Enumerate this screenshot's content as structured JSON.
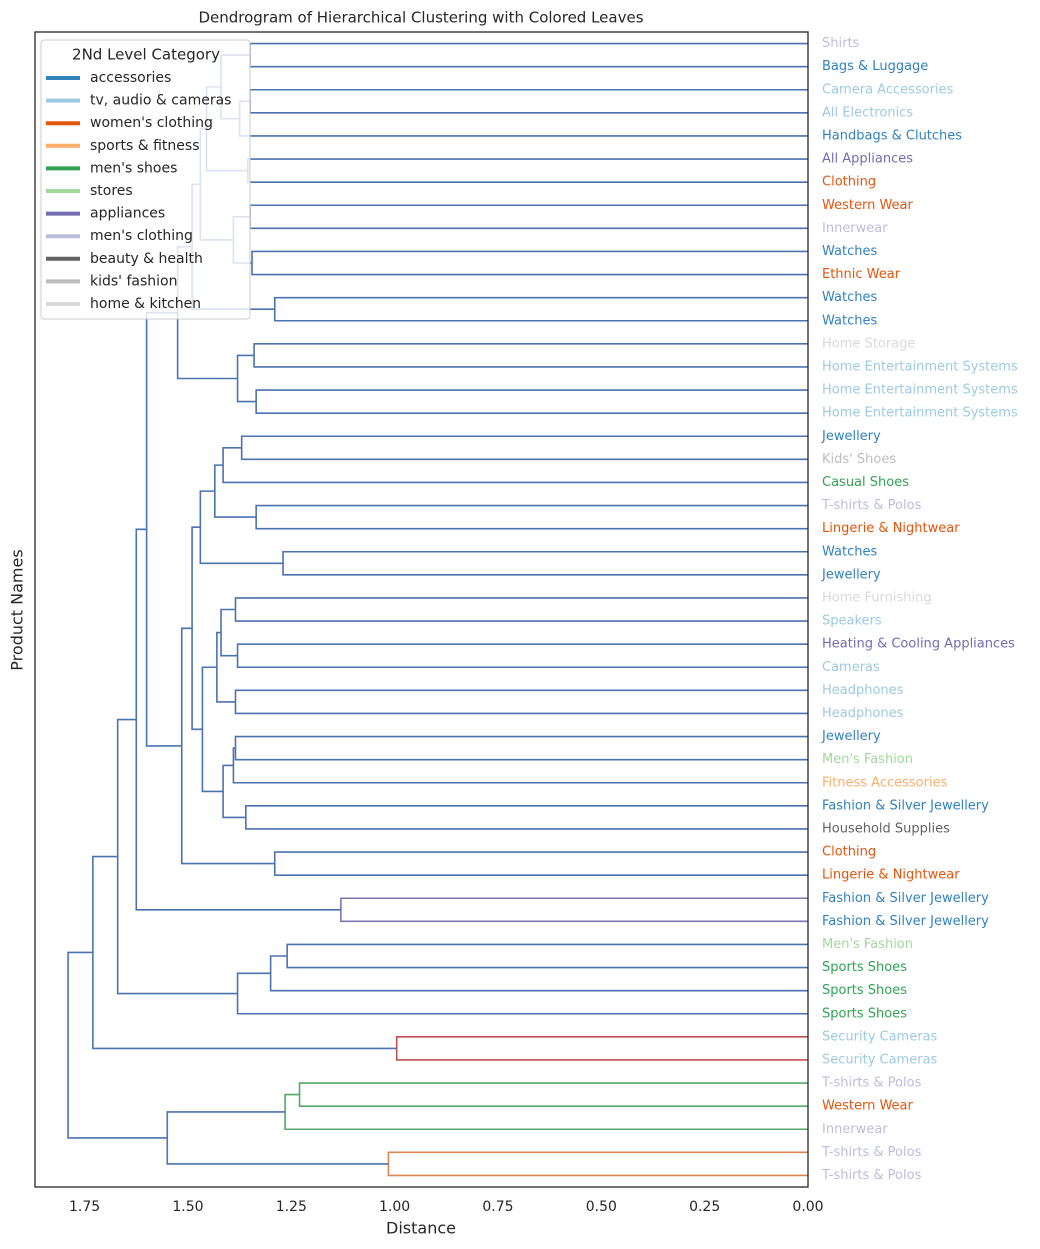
{
  "chart_data": {
    "type": "dendrogram",
    "title": "Dendrogram of Hierarchical Clustering with Colored Leaves",
    "xlabel": "Distance",
    "ylabel": "Product Names",
    "xlim": [
      1.87,
      0
    ],
    "xticks": [
      {
        "value": 1.75,
        "label": "1.75"
      },
      {
        "value": 1.5,
        "label": "1.50"
      },
      {
        "value": 1.25,
        "label": "1.25"
      },
      {
        "value": 1.0,
        "label": "1.00"
      },
      {
        "value": 0.75,
        "label": "0.75"
      },
      {
        "value": 0.5,
        "label": "0.50"
      },
      {
        "value": 0.25,
        "label": "0.25"
      },
      {
        "value": 0,
        "label": "0.00"
      }
    ],
    "legend": {
      "title": "2Nd Level Category",
      "position": "upper left",
      "categories": [
        {
          "name": "accessories",
          "color": "#3182bd"
        },
        {
          "name": "tv, audio & cameras",
          "color": "#9ecae1"
        },
        {
          "name": "women's clothing",
          "color": "#e6550d"
        },
        {
          "name": "sports & fitness",
          "color": "#fdae6b"
        },
        {
          "name": "men's shoes",
          "color": "#31a354"
        },
        {
          "name": "stores",
          "color": "#a1d99b"
        },
        {
          "name": "appliances",
          "color": "#756bb1"
        },
        {
          "name": "men's clothing",
          "color": "#bcbddc"
        },
        {
          "name": "beauty & health",
          "color": "#636363"
        },
        {
          "name": "kids' fashion",
          "color": "#bdbdbd"
        },
        {
          "name": "home & kitchen",
          "color": "#d9d9d9"
        }
      ]
    },
    "leaves": [
      {
        "name": "Shirts",
        "category": "men's clothing"
      },
      {
        "name": "Bags & Luggage",
        "category": "accessories"
      },
      {
        "name": "Camera Accessories",
        "category": "tv, audio & cameras"
      },
      {
        "name": "All Electronics",
        "category": "tv, audio & cameras"
      },
      {
        "name": "Handbags & Clutches",
        "category": "accessories"
      },
      {
        "name": "All Appliances",
        "category": "appliances"
      },
      {
        "name": "Clothing",
        "category": "women's clothing"
      },
      {
        "name": "Western Wear",
        "category": "women's clothing"
      },
      {
        "name": "Innerwear",
        "category": "men's clothing"
      },
      {
        "name": "Watches",
        "category": "accessories"
      },
      {
        "name": "Ethnic Wear",
        "category": "women's clothing"
      },
      {
        "name": "Watches",
        "category": "accessories"
      },
      {
        "name": "Watches",
        "category": "accessories"
      },
      {
        "name": "Home Storage",
        "category": "home & kitchen"
      },
      {
        "name": "Home Entertainment Systems",
        "category": "tv, audio & cameras"
      },
      {
        "name": "Home Entertainment Systems",
        "category": "tv, audio & cameras"
      },
      {
        "name": "Home Entertainment Systems",
        "category": "tv, audio & cameras"
      },
      {
        "name": "Jewellery",
        "category": "accessories"
      },
      {
        "name": "Kids' Shoes",
        "category": "kids' fashion"
      },
      {
        "name": "Casual Shoes",
        "category": "men's shoes"
      },
      {
        "name": "T-shirts & Polos",
        "category": "men's clothing"
      },
      {
        "name": "Lingerie & Nightwear",
        "category": "women's clothing"
      },
      {
        "name": "Watches",
        "category": "accessories"
      },
      {
        "name": "Jewellery",
        "category": "accessories"
      },
      {
        "name": "Home Furnishing",
        "category": "home & kitchen"
      },
      {
        "name": "Speakers",
        "category": "tv, audio & cameras"
      },
      {
        "name": "Heating & Cooling Appliances",
        "category": "appliances"
      },
      {
        "name": "Cameras",
        "category": "tv, audio & cameras"
      },
      {
        "name": "Headphones",
        "category": "tv, audio & cameras"
      },
      {
        "name": "Headphones",
        "category": "tv, audio & cameras"
      },
      {
        "name": "Jewellery",
        "category": "accessories"
      },
      {
        "name": "Men's Fashion",
        "category": "stores"
      },
      {
        "name": "Fitness Accessories",
        "category": "sports & fitness"
      },
      {
        "name": "Fashion & Silver Jewellery",
        "category": "accessories"
      },
      {
        "name": "Household Supplies",
        "category": "beauty & health"
      },
      {
        "name": "Clothing",
        "category": "women's clothing"
      },
      {
        "name": "Lingerie & Nightwear",
        "category": "women's clothing"
      },
      {
        "name": "Fashion & Silver Jewellery",
        "category": "accessories"
      },
      {
        "name": "Fashion & Silver Jewellery",
        "category": "accessories"
      },
      {
        "name": "Men's Fashion",
        "category": "stores"
      },
      {
        "name": "Sports Shoes",
        "category": "men's shoes"
      },
      {
        "name": "Sports Shoes",
        "category": "men's shoes"
      },
      {
        "name": "Sports Shoes",
        "category": "men's shoes"
      },
      {
        "name": "Security Cameras",
        "category": "tv, audio & cameras"
      },
      {
        "name": "Security Cameras",
        "category": "tv, audio & cameras"
      },
      {
        "name": "T-shirts & Polos",
        "category": "men's clothing"
      },
      {
        "name": "Western Wear",
        "category": "women's clothing"
      },
      {
        "name": "Innerwear",
        "category": "men's clothing"
      },
      {
        "name": "T-shirts & Polos",
        "category": "men's clothing"
      },
      {
        "name": "T-shirts & Polos",
        "category": "men's clothing"
      }
    ],
    "merges": [
      {
        "left": 0,
        "right": 1,
        "height": 1.35,
        "color": "#4c72b0"
      },
      {
        "left": 2,
        "right": 3,
        "height": 1.35,
        "color": "#4c72b0"
      },
      {
        "left": 51,
        "right": 4,
        "height": 1.375,
        "color": "#4c72b0"
      },
      {
        "left": 50,
        "right": 52,
        "height": 1.42,
        "color": "#4c72b0"
      },
      {
        "left": 5,
        "right": 6,
        "height": 1.355,
        "color": "#4c72b0"
      },
      {
        "left": 53,
        "right": 54,
        "height": 1.455,
        "color": "#4c72b0"
      },
      {
        "left": 7,
        "right": 8,
        "height": 1.35,
        "color": "#4c72b0"
      },
      {
        "left": 9,
        "right": 10,
        "height": 1.345,
        "color": "#4c72b0"
      },
      {
        "left": 56,
        "right": 57,
        "height": 1.39,
        "color": "#4c72b0"
      },
      {
        "left": 55,
        "right": 58,
        "height": 1.47,
        "color": "#4c72b0"
      },
      {
        "left": 11,
        "right": 12,
        "height": 1.29,
        "color": "#4c72b0"
      },
      {
        "left": 59,
        "right": 60,
        "height": 1.49,
        "color": "#4c72b0"
      },
      {
        "left": 13,
        "right": 14,
        "height": 1.34,
        "color": "#4c72b0"
      },
      {
        "left": 15,
        "right": 16,
        "height": 1.335,
        "color": "#4c72b0"
      },
      {
        "left": 62,
        "right": 63,
        "height": 1.38,
        "color": "#4c72b0"
      },
      {
        "left": 61,
        "right": 64,
        "height": 1.525,
        "color": "#4c72b0"
      },
      {
        "left": 17,
        "right": 18,
        "height": 1.37,
        "color": "#4c72b0"
      },
      {
        "left": 66,
        "right": 19,
        "height": 1.415,
        "color": "#4c72b0"
      },
      {
        "left": 20,
        "right": 21,
        "height": 1.335,
        "color": "#4c72b0"
      },
      {
        "left": 67,
        "right": 68,
        "height": 1.435,
        "color": "#4c72b0"
      },
      {
        "left": 22,
        "right": 23,
        "height": 1.27,
        "color": "#4c72b0"
      },
      {
        "left": 69,
        "right": 70,
        "height": 1.47,
        "color": "#4c72b0"
      },
      {
        "left": 24,
        "right": 25,
        "height": 1.385,
        "color": "#4c72b0"
      },
      {
        "left": 26,
        "right": 27,
        "height": 1.38,
        "color": "#4c72b0"
      },
      {
        "left": 72,
        "right": 73,
        "height": 1.42,
        "color": "#4c72b0"
      },
      {
        "left": 28,
        "right": 29,
        "height": 1.385,
        "color": "#4c72b0"
      },
      {
        "left": 74,
        "right": 75,
        "height": 1.43,
        "color": "#4c72b0"
      },
      {
        "left": 30,
        "right": 31,
        "height": 1.385,
        "color": "#4c72b0"
      },
      {
        "left": 77,
        "right": 32,
        "height": 1.39,
        "color": "#4c72b0"
      },
      {
        "left": 33,
        "right": 34,
        "height": 1.36,
        "color": "#4c72b0"
      },
      {
        "left": 78,
        "right": 79,
        "height": 1.415,
        "color": "#4c72b0"
      },
      {
        "left": 76,
        "right": 80,
        "height": 1.465,
        "color": "#4c72b0"
      },
      {
        "left": 71,
        "right": 81,
        "height": 1.49,
        "color": "#4c72b0"
      },
      {
        "left": 35,
        "right": 36,
        "height": 1.29,
        "color": "#4c72b0"
      },
      {
        "left": 82,
        "right": 83,
        "height": 1.515,
        "color": "#4c72b0"
      },
      {
        "left": 65,
        "right": 84,
        "height": 1.6,
        "color": "#4c72b0"
      },
      {
        "left": 37,
        "right": 38,
        "height": 1.13,
        "color": "#8172b3"
      },
      {
        "left": 85,
        "right": 86,
        "height": 1.625,
        "color": "#4c72b0"
      },
      {
        "left": 39,
        "right": 40,
        "height": 1.26,
        "color": "#4c72b0"
      },
      {
        "left": 88,
        "right": 41,
        "height": 1.3,
        "color": "#4c72b0"
      },
      {
        "left": 89,
        "right": 42,
        "height": 1.38,
        "color": "#4c72b0"
      },
      {
        "left": 87,
        "right": 90,
        "height": 1.67,
        "color": "#4c72b0"
      },
      {
        "left": 43,
        "right": 44,
        "height": 0.995,
        "color": "#c44e52"
      },
      {
        "left": 91,
        "right": 92,
        "height": 1.73,
        "color": "#4c72b0"
      },
      {
        "left": 45,
        "right": 46,
        "height": 1.23,
        "color": "#55a868"
      },
      {
        "left": 94,
        "right": 47,
        "height": 1.265,
        "color": "#55a868"
      },
      {
        "left": 48,
        "right": 49,
        "height": 1.015,
        "color": "#dd8452"
      },
      {
        "left": 95,
        "right": 96,
        "height": 1.55,
        "color": "#4c72b0"
      },
      {
        "left": 93,
        "right": 97,
        "height": 1.79,
        "color": "#4c72b0"
      }
    ]
  }
}
